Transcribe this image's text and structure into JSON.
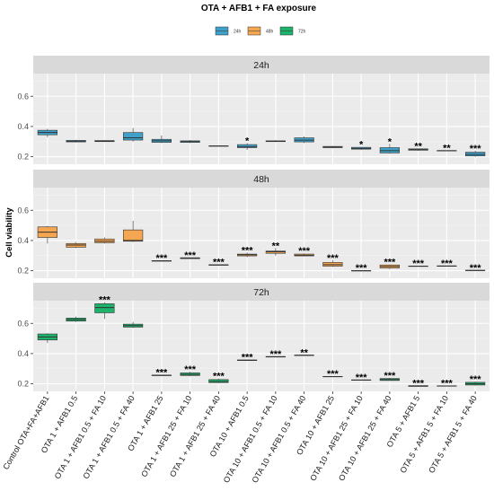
{
  "chart_data": {
    "type": "box",
    "title": "OTA + AFB1 + FA exposure",
    "ylabel": "Cell viability",
    "xlabel": "",
    "ylim": [
      0.15,
      0.75
    ],
    "yticks": [
      0.2,
      0.4,
      0.6
    ],
    "legend": {
      "position": "top",
      "entries": [
        "24h",
        "48h",
        "72h"
      ]
    },
    "colors": {
      "24h": "#3fa0c9",
      "48h": "#f5a650",
      "72h": "#1db36b"
    },
    "categories": [
      "Control OTA+FA+AFB1",
      "OTA 1 + AFB1 0.5",
      "OTA 1 + AFB1 0.5 + FA 10",
      "OTA 1 + AFB1 0.5 + FA 40",
      "OTA 1 + AFB1 25",
      "OTA 1 + AFB1 25 + FA 10",
      "OTA 1 + AFB1 25 + FA 40",
      "OTA 10 + AFB1 0.5",
      "OTA 10 + AFB1 0.5 + FA 10",
      "OTA 10 + AFB1 0.5 + FA 40",
      "OTA 10 + AFB1 25",
      "OTA 10 + AFB1 25 + FA 10",
      "OTA 10 + AFB1 25 + FA 40",
      "OTA 5 + AFB1 5",
      "OTA 5 + AFB1 5 + FA 10",
      "OTA 5 + AFB1 5 + FA 40"
    ],
    "series": [
      {
        "name": "24h",
        "boxes": [
          {
            "min": 0.33,
            "q1": 0.345,
            "median": 0.36,
            "q3": 0.375,
            "max": 0.385,
            "sig": ""
          },
          {
            "min": 0.295,
            "q1": 0.298,
            "median": 0.302,
            "q3": 0.308,
            "max": 0.312,
            "sig": ""
          },
          {
            "min": 0.298,
            "q1": 0.3,
            "median": 0.303,
            "q3": 0.307,
            "max": 0.31,
            "sig": ""
          },
          {
            "min": 0.3,
            "q1": 0.31,
            "median": 0.325,
            "q3": 0.36,
            "max": 0.39,
            "sig": ""
          },
          {
            "min": 0.29,
            "q1": 0.295,
            "median": 0.305,
            "q3": 0.315,
            "max": 0.34,
            "sig": ""
          },
          {
            "min": 0.29,
            "q1": 0.295,
            "median": 0.3,
            "q3": 0.305,
            "max": 0.31,
            "sig": ""
          },
          {
            "min": 0.27,
            "q1": 0.27,
            "median": 0.271,
            "q3": 0.272,
            "max": 0.272,
            "sig": ""
          },
          {
            "min": 0.245,
            "q1": 0.26,
            "median": 0.265,
            "q3": 0.28,
            "max": 0.29,
            "sig": "*"
          },
          {
            "min": 0.298,
            "q1": 0.3,
            "median": 0.302,
            "q3": 0.305,
            "max": 0.31,
            "sig": ""
          },
          {
            "min": 0.29,
            "q1": 0.298,
            "median": 0.31,
            "q3": 0.325,
            "max": 0.335,
            "sig": ""
          },
          {
            "min": 0.258,
            "q1": 0.26,
            "median": 0.263,
            "q3": 0.268,
            "max": 0.27,
            "sig": ""
          },
          {
            "min": 0.245,
            "q1": 0.25,
            "median": 0.255,
            "q3": 0.262,
            "max": 0.265,
            "sig": "*"
          },
          {
            "min": 0.22,
            "q1": 0.225,
            "median": 0.24,
            "q3": 0.26,
            "max": 0.285,
            "sig": "*"
          },
          {
            "min": 0.24,
            "q1": 0.243,
            "median": 0.247,
            "q3": 0.252,
            "max": 0.255,
            "sig": "**"
          },
          {
            "min": 0.238,
            "q1": 0.239,
            "median": 0.24,
            "q3": 0.241,
            "max": 0.242,
            "sig": "**"
          },
          {
            "min": 0.2,
            "q1": 0.205,
            "median": 0.215,
            "q3": 0.23,
            "max": 0.24,
            "sig": "***"
          }
        ]
      },
      {
        "name": "48h",
        "boxes": [
          {
            "min": 0.38,
            "q1": 0.42,
            "median": 0.455,
            "q3": 0.49,
            "max": 0.495,
            "sig": ""
          },
          {
            "min": 0.35,
            "q1": 0.355,
            "median": 0.37,
            "q3": 0.38,
            "max": 0.39,
            "sig": ""
          },
          {
            "min": 0.38,
            "q1": 0.385,
            "median": 0.395,
            "q3": 0.41,
            "max": 0.42,
            "sig": ""
          },
          {
            "min": 0.39,
            "q1": 0.395,
            "median": 0.4,
            "q3": 0.47,
            "max": 0.53,
            "sig": ""
          },
          {
            "min": 0.262,
            "q1": 0.263,
            "median": 0.265,
            "q3": 0.267,
            "max": 0.268,
            "sig": "***"
          },
          {
            "min": 0.278,
            "q1": 0.28,
            "median": 0.283,
            "q3": 0.286,
            "max": 0.288,
            "sig": "***"
          },
          {
            "min": 0.235,
            "q1": 0.236,
            "median": 0.238,
            "q3": 0.24,
            "max": 0.241,
            "sig": "***"
          },
          {
            "min": 0.29,
            "q1": 0.298,
            "median": 0.305,
            "q3": 0.31,
            "max": 0.32,
            "sig": "***"
          },
          {
            "min": 0.3,
            "q1": 0.315,
            "median": 0.325,
            "q3": 0.33,
            "max": 0.35,
            "sig": "**"
          },
          {
            "min": 0.295,
            "q1": 0.298,
            "median": 0.302,
            "q3": 0.31,
            "max": 0.315,
            "sig": "***"
          },
          {
            "min": 0.225,
            "q1": 0.23,
            "median": 0.24,
            "q3": 0.255,
            "max": 0.27,
            "sig": "***"
          },
          {
            "min": 0.197,
            "q1": 0.198,
            "median": 0.2,
            "q3": 0.201,
            "max": 0.202,
            "sig": "***"
          },
          {
            "min": 0.21,
            "q1": 0.218,
            "median": 0.228,
            "q3": 0.238,
            "max": 0.242,
            "sig": "***"
          },
          {
            "min": 0.228,
            "q1": 0.229,
            "median": 0.23,
            "q3": 0.231,
            "max": 0.232,
            "sig": "***"
          },
          {
            "min": 0.228,
            "q1": 0.229,
            "median": 0.231,
            "q3": 0.232,
            "max": 0.233,
            "sig": "***"
          },
          {
            "min": 0.2,
            "q1": 0.201,
            "median": 0.202,
            "q3": 0.203,
            "max": 0.204,
            "sig": "***"
          }
        ]
      },
      {
        "name": "72h",
        "boxes": [
          {
            "min": 0.47,
            "q1": 0.49,
            "median": 0.51,
            "q3": 0.53,
            "max": 0.535,
            "sig": ""
          },
          {
            "min": 0.61,
            "q1": 0.615,
            "median": 0.625,
            "q3": 0.635,
            "max": 0.645,
            "sig": ""
          },
          {
            "min": 0.63,
            "q1": 0.67,
            "median": 0.705,
            "q3": 0.73,
            "max": 0.74,
            "sig": "***"
          },
          {
            "min": 0.57,
            "q1": 0.575,
            "median": 0.585,
            "q3": 0.595,
            "max": 0.61,
            "sig": ""
          },
          {
            "min": 0.252,
            "q1": 0.254,
            "median": 0.256,
            "q3": 0.258,
            "max": 0.26,
            "sig": "***"
          },
          {
            "min": 0.25,
            "q1": 0.255,
            "median": 0.262,
            "q3": 0.272,
            "max": 0.28,
            "sig": "***"
          },
          {
            "min": 0.205,
            "q1": 0.208,
            "median": 0.215,
            "q3": 0.228,
            "max": 0.235,
            "sig": "***"
          },
          {
            "min": 0.352,
            "q1": 0.354,
            "median": 0.356,
            "q3": 0.358,
            "max": 0.36,
            "sig": "***"
          },
          {
            "min": 0.375,
            "q1": 0.377,
            "median": 0.379,
            "q3": 0.381,
            "max": 0.383,
            "sig": "***"
          },
          {
            "min": 0.387,
            "q1": 0.388,
            "median": 0.389,
            "q3": 0.39,
            "max": 0.391,
            "sig": "**"
          },
          {
            "min": 0.246,
            "q1": 0.247,
            "median": 0.248,
            "q3": 0.249,
            "max": 0.25,
            "sig": "***"
          },
          {
            "min": 0.223,
            "q1": 0.224,
            "median": 0.225,
            "q3": 0.226,
            "max": 0.227,
            "sig": "***"
          },
          {
            "min": 0.22,
            "q1": 0.222,
            "median": 0.228,
            "q3": 0.235,
            "max": 0.24,
            "sig": "***"
          },
          {
            "min": 0.182,
            "q1": 0.183,
            "median": 0.185,
            "q3": 0.188,
            "max": 0.19,
            "sig": "***"
          },
          {
            "min": 0.183,
            "q1": 0.184,
            "median": 0.186,
            "q3": 0.187,
            "max": 0.188,
            "sig": "***"
          },
          {
            "min": 0.188,
            "q1": 0.192,
            "median": 0.2,
            "q3": 0.21,
            "max": 0.215,
            "sig": "***"
          }
        ]
      }
    ]
  }
}
